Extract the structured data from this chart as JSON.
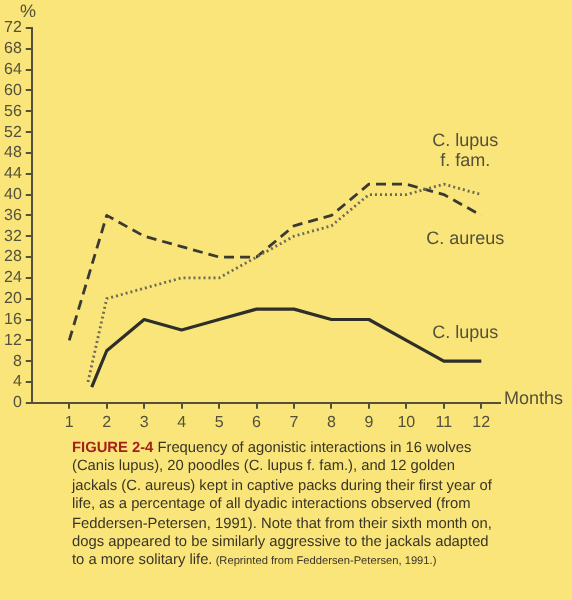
{
  "chart_data": {
    "type": "line",
    "ylabel": "%",
    "xlabel": "Months",
    "xlim": [
      0,
      12.5
    ],
    "xticks": [
      1,
      2,
      3,
      4,
      5,
      6,
      7,
      8,
      9,
      10,
      11,
      12
    ],
    "ylim": [
      0,
      72
    ],
    "yticks": [
      0,
      4,
      8,
      12,
      16,
      20,
      24,
      28,
      32,
      36,
      40,
      44,
      48,
      52,
      56,
      60,
      64,
      68,
      72
    ],
    "grid": false,
    "legend": false,
    "marker": "none",
    "series": [
      {
        "name": "C. lupus f. fam.",
        "color": "#6e6a55",
        "line_style": "dotted",
        "x": [
          1.5,
          2,
          3,
          4,
          5,
          6,
          7,
          8,
          9,
          10,
          11,
          12
        ],
        "values": [
          4,
          20,
          22,
          24,
          24,
          28,
          32,
          34,
          40,
          40,
          42,
          40
        ]
      },
      {
        "name": "C. aureus",
        "color": "#3a3a33",
        "line_style": "dashed",
        "x": [
          1,
          2,
          3,
          4,
          5,
          6,
          7,
          8,
          9,
          10,
          11,
          12
        ],
        "values": [
          12,
          36,
          32,
          30,
          28,
          28,
          34,
          36,
          42,
          42,
          40,
          36
        ]
      },
      {
        "name": "C. lupus",
        "color": "#2e2e2a",
        "line_style": "solid",
        "x": [
          1.6,
          2,
          3,
          4,
          5,
          6,
          7,
          8,
          9,
          10,
          11,
          12
        ],
        "values": [
          3,
          10,
          16,
          14,
          16,
          18,
          18,
          16,
          16,
          12,
          8,
          8
        ]
      }
    ],
    "annotations": [
      "FIGURE 2-4",
      "Frequency of agonistic interactions in 16 wolves (Canis lupus), 20 poodles (C. lupus f. fam.), and 12 golden jackals (C. aureus) kept in captive packs during their first year of life, as a percentage of all dyadic interactions observed (from Feddersen-Petersen, 1991). Note that from their sixth month on, dogs appeared to be similarly aggressive to the jackals adapted to a more solitary life.",
      "(Reprinted from Feddersen-Petersen, 1991.)"
    ]
  }
}
